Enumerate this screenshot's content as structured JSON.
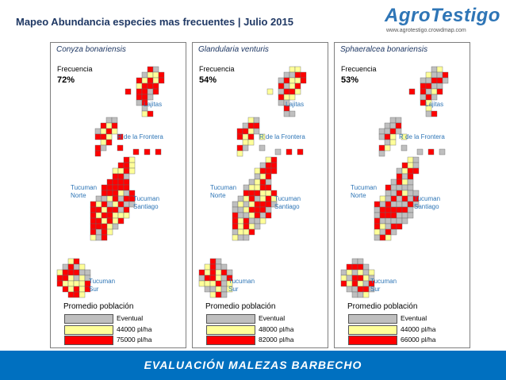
{
  "header": {
    "title": "Mapeo Abundancia especies mas frecuentes | Julio 2015"
  },
  "logo": {
    "name": "AgroTestigo",
    "url": "www.agrotestigo.crowdmap.com"
  },
  "colors": {
    "eventual": "#bfbfbf",
    "mid": "#ffff99",
    "high": "#ff0000",
    "accent": "#0070c0",
    "region_label": "#2e75b6"
  },
  "common": {
    "frequency_label": "Frecuencia",
    "legend_title": "Promedio población",
    "regions": {
      "lajitas": "Lajitas",
      "rfrontera": "R de la Frontera",
      "tucuman_norte": "Tucuman Norte",
      "tucuman_santiago": "Tucuman Santiago",
      "tucuman_sur": "Tucuman Sur"
    }
  },
  "panels": [
    {
      "species": "Conyza bonariensis",
      "frequency": "72%",
      "legend": {
        "eventual": "Eventual",
        "mid": "44000 pl/ha",
        "high": "75000 pl/ha"
      }
    },
    {
      "species": "Glandularia venturis",
      "frequency": "54%",
      "legend": {
        "eventual": "Eventual",
        "mid": "48000 pl/ha",
        "high": "82000 pl/ha"
      }
    },
    {
      "species": "Sphaeralcea bonariensis",
      "frequency": "53%",
      "legend": {
        "eventual": "Eventual",
        "mid": "44000 pl/ha",
        "high": "66000 pl/ha"
      }
    }
  ],
  "footer": {
    "banner": "EVALUACIÓN MALEZAS BARBECHO"
  }
}
